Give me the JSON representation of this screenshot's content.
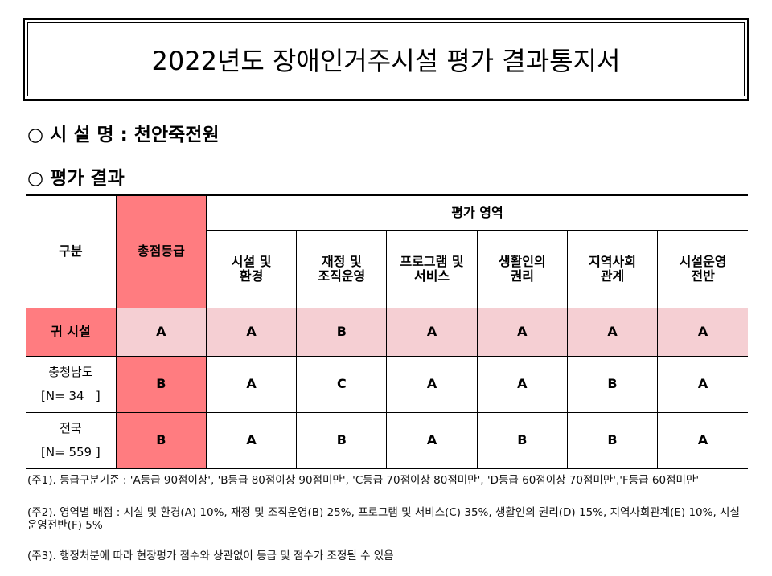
{
  "title": "2022년도 장애인거주시설 평가 결과통지서",
  "facility_line": "○ 시 설 명 : 천안죽전원",
  "result_heading": "○ 평가 결과",
  "table": {
    "col_group": "구분",
    "col_total": "총점등급",
    "area_group": "평가 영역",
    "areas": [
      "시설 및\n환경",
      "재정 및\n조직운영",
      "프로그램 및\n서비스",
      "생활인의\n권리",
      "지역사회\n관계",
      "시설운영\n전반"
    ],
    "rows": [
      {
        "label": "귀 시설",
        "sub": "",
        "total": "A",
        "grades": [
          "A",
          "B",
          "A",
          "A",
          "A",
          "A"
        ]
      },
      {
        "label": "충청남도",
        "sub": "[N= 34   ]",
        "total": "B",
        "grades": [
          "A",
          "C",
          "A",
          "A",
          "B",
          "A"
        ]
      },
      {
        "label": "전국",
        "sub": "[N= 559 ]",
        "total": "B",
        "grades": [
          "A",
          "B",
          "A",
          "B",
          "B",
          "A"
        ]
      }
    ]
  },
  "notes": [
    "(주1). 등급구분기준 : 'A등급 90점이상', 'B등급 80점이상 90점미만', 'C등급 70점이상 80점미만', 'D등급 60점이상 70점미만','F등급 60점미만'",
    "(주2). 영역별 배점 : 시설 및 환경(A) 10%, 재정 및 조직운영(B) 25%, 프로그램 및 서비스(C) 35%, 생활인의 권리(D) 15%, 지역사회관계(E) 10%, 시설운영전반(F) 5%",
    "(주3). 행정처분에 따라 현장평가 점수와 상관없이 등급 및 점수가 조정될 수 있음"
  ],
  "colors": {
    "total_column": "#ff7c80",
    "own_facility_row": "#f5cfd3"
  }
}
